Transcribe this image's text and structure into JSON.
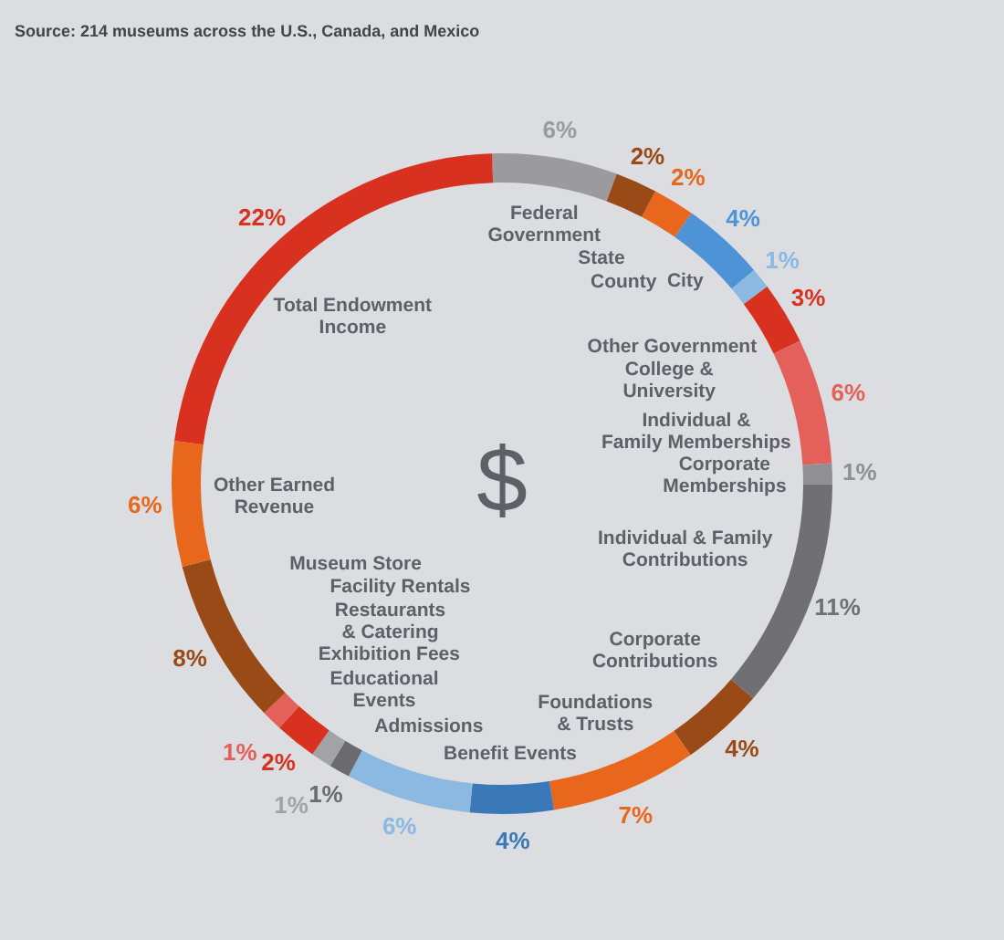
{
  "chart_data": {
    "type": "donut",
    "annotations": [
      "Source: 214 museums across the U.S., Canada, and Mexico",
      "$"
    ],
    "categories": [
      "Federal Government",
      "State",
      "County",
      "City",
      "Other Government",
      "College & University",
      "Individual & Family Memberships",
      "Corporate Memberships",
      "Individual & Family Contributions",
      "Corporate Contributions",
      "Foundations & Trusts",
      "Benefit Events",
      "Admissions",
      "Educational Events",
      "Exhibition Fees",
      "Restaurants & Catering",
      "Facility Rentals",
      "Museum Store",
      "Other Earned Revenue",
      "Total Endowment Income"
    ],
    "values": [
      6,
      2,
      2,
      4,
      1,
      3,
      6,
      1,
      11,
      4,
      7,
      4,
      6,
      1,
      1,
      2,
      1,
      8,
      6,
      22
    ],
    "value_labels": [
      "6%",
      "2%",
      "2%",
      "4%",
      "1%",
      "3%",
      "6%",
      "1%",
      "11%",
      "4%",
      "7%",
      "4%",
      "6%",
      "1%",
      "1%",
      "2%",
      "1%",
      "8%",
      "6%",
      "22%"
    ],
    "colors": [
      "#9b9b9e",
      "#9a4a16",
      "#e9671d",
      "#4e93d6",
      "#8cb9e1",
      "#d8311f",
      "#e4605a",
      "#8f8f94",
      "#707074",
      "#9a4a16",
      "#e9671d",
      "#3a78b8",
      "#8cb9e1",
      "#6c6c70",
      "#a3a3a7",
      "#d8311f",
      "#e4605a",
      "#9a4a16",
      "#e9671d",
      "#d8311f"
    ],
    "data_labels": true
  }
}
